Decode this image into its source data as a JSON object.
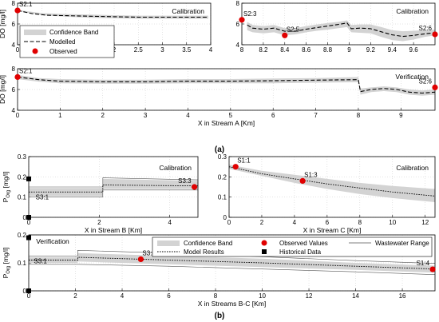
{
  "figure": {
    "label_a": "(a)",
    "label_b": "(b)"
  },
  "chart_data": [
    {
      "id": "a1",
      "type": "line",
      "title": "Calibration",
      "ylabel": "DO [mg/l]",
      "xlabel": "",
      "xlim": [
        0,
        4
      ],
      "ylim": [
        4,
        8
      ],
      "xticks": [
        0,
        0.5,
        1,
        1.5,
        2,
        2.5,
        3,
        3.5,
        4
      ],
      "xticklabels": [
        "0",
        "0.5",
        "1",
        "1.5",
        "2",
        "2.5",
        "3",
        "3.5",
        "4"
      ],
      "yticks": [
        4,
        6,
        8
      ],
      "yticklabels": [
        "4",
        "6",
        "8"
      ],
      "grid": true,
      "legend": {
        "placement": "bottom-left",
        "entries": [
          {
            "label": "Confidence Band",
            "kind": "band"
          },
          {
            "label": "Modelled",
            "kind": "dashed"
          },
          {
            "label": "Observed",
            "kind": "dot"
          }
        ]
      },
      "band": {
        "x": [
          0,
          0.5,
          1,
          1.5,
          2,
          2.5,
          3,
          3.5,
          3.95
        ],
        "lo": [
          7.25,
          6.85,
          6.7,
          6.6,
          6.55,
          6.5,
          6.5,
          6.5,
          6.5
        ],
        "hi": [
          7.35,
          7.05,
          6.95,
          6.9,
          6.85,
          6.8,
          6.8,
          6.8,
          6.8
        ]
      },
      "series": [
        {
          "x": [
            0,
            0.3,
            0.6,
            1,
            1.5,
            2,
            2.5,
            3,
            3.5,
            3.95
          ],
          "y": [
            7.3,
            7.0,
            6.85,
            6.8,
            6.75,
            6.7,
            6.65,
            6.65,
            6.65,
            6.65
          ],
          "style": "dashed"
        }
      ],
      "observed": [
        {
          "x": 0,
          "y": 7.3,
          "label": "S2:1"
        }
      ]
    },
    {
      "id": "a2",
      "type": "line",
      "title": "Calibration",
      "ylabel": "",
      "xlabel": "",
      "xlim": [
        8,
        9.8
      ],
      "ylim": [
        4,
        8
      ],
      "xticks": [
        8,
        8.2,
        8.4,
        8.6,
        8.8,
        9,
        9.2,
        9.4,
        9.6
      ],
      "xticklabels": [
        "8",
        "8.2",
        "8.4",
        "8.6",
        "8.8",
        "9",
        "9.2",
        "9.4",
        "9.6"
      ],
      "yticks": [
        4,
        6,
        8
      ],
      "yticklabels": [
        "4",
        "6",
        "8"
      ],
      "grid": true,
      "band": {
        "x": [
          8.05,
          8.1,
          8.2,
          8.3,
          8.4,
          8.5,
          8.6,
          8.7,
          8.8,
          8.9,
          8.98,
          9.02,
          9.1,
          9.2,
          9.3,
          9.4,
          9.5,
          9.6,
          9.7,
          9.8
        ],
        "lo": [
          5.4,
          5.2,
          5.1,
          5.2,
          4.9,
          5.0,
          5.2,
          5.35,
          5.45,
          5.6,
          5.7,
          5.2,
          5.15,
          5.1,
          4.75,
          4.45,
          4.35,
          4.5,
          4.75,
          4.9
        ],
        "hi": [
          6.2,
          5.9,
          5.8,
          5.9,
          5.6,
          5.6,
          5.8,
          5.95,
          6.1,
          6.2,
          6.35,
          5.9,
          5.95,
          5.95,
          5.7,
          5.4,
          5.3,
          5.35,
          5.4,
          5.45
        ]
      },
      "series": [
        {
          "x": [
            8.05,
            8.1,
            8.2,
            8.3,
            8.4,
            8.5,
            8.6,
            8.7,
            8.8,
            8.9,
            8.98,
            9.02,
            9.1,
            9.2,
            9.3,
            9.4,
            9.5,
            9.6,
            9.7,
            9.8
          ],
          "y": [
            5.9,
            5.6,
            5.5,
            5.6,
            5.3,
            5.3,
            5.5,
            5.65,
            5.8,
            5.95,
            6.1,
            5.55,
            5.6,
            5.55,
            5.25,
            4.95,
            4.8,
            4.9,
            5.05,
            5.15
          ],
          "style": "dashed"
        }
      ],
      "observed": [
        {
          "x": 8.0,
          "y": 6.4,
          "label": "S2:3"
        },
        {
          "x": 8.4,
          "y": 4.9,
          "label": "S2:5"
        },
        {
          "x": 9.8,
          "y": 5.0,
          "label": "S2:6"
        }
      ]
    },
    {
      "id": "a3",
      "type": "line",
      "title": "Verification",
      "ylabel": "DO [mg/l]",
      "xlabel": "X in Stream A [Km]",
      "xlim": [
        0,
        9.8
      ],
      "ylim": [
        4,
        8
      ],
      "xticks": [
        0,
        1,
        2,
        3,
        4,
        5,
        6,
        7,
        8,
        9
      ],
      "xticklabels": [
        "0",
        "1",
        "2",
        "3",
        "4",
        "5",
        "6",
        "7",
        "8",
        "9"
      ],
      "yticks": [
        4,
        6,
        8
      ],
      "yticklabels": [
        "4",
        "6",
        "8"
      ],
      "grid": true,
      "band": {
        "x": [
          0,
          0.5,
          1,
          2,
          3,
          4,
          5,
          6,
          7,
          8.0,
          8.05,
          8.3,
          8.6,
          8.9,
          9.2,
          9.5,
          9.8
        ],
        "lo": [
          7.0,
          6.75,
          6.6,
          6.55,
          6.55,
          6.6,
          6.6,
          6.6,
          6.65,
          6.7,
          5.5,
          5.75,
          5.85,
          5.75,
          5.5,
          5.4,
          5.5
        ],
        "hi": [
          7.4,
          7.1,
          7.0,
          6.95,
          6.95,
          7.0,
          7.0,
          7.05,
          7.1,
          7.2,
          6.1,
          6.2,
          6.3,
          6.2,
          6.0,
          5.9,
          6.0
        ]
      },
      "series": [
        {
          "x": [
            0,
            0.5,
            1,
            2,
            3,
            4,
            5,
            6,
            7,
            8.0,
            8.05,
            8.3,
            8.6,
            8.9,
            9.2,
            9.5,
            9.8
          ],
          "y": [
            7.2,
            6.95,
            6.8,
            6.75,
            6.75,
            6.8,
            6.8,
            6.85,
            6.9,
            6.95,
            5.8,
            6.0,
            6.1,
            6.0,
            5.75,
            5.65,
            5.75
          ],
          "style": "dashed"
        }
      ],
      "observed": [
        {
          "x": 0,
          "y": 7.2,
          "label": "S2:1"
        },
        {
          "x": 9.8,
          "y": 6.2,
          "label": "S2:6"
        }
      ]
    },
    {
      "id": "b1",
      "type": "line",
      "title": "Calibration",
      "ylabel": "P_Org [mg/l]",
      "xlabel": "X in Stream B [Km]",
      "xlim": [
        0,
        4.8
      ],
      "ylim": [
        0,
        0.3
      ],
      "xticks": [
        0,
        2,
        4
      ],
      "xticklabels": [
        "0",
        "2",
        "4"
      ],
      "yticks": [
        0,
        0.1,
        0.2,
        0.3
      ],
      "yticklabels": [
        "0",
        "0.1",
        "0.2",
        "0.3"
      ],
      "grid": true,
      "band": {
        "x": [
          0,
          2.1,
          2.1,
          4.8
        ],
        "lo": [
          0.105,
          0.105,
          0.14,
          0.14
        ],
        "hi": [
          0.145,
          0.145,
          0.19,
          0.18
        ]
      },
      "wastewater": [
        {
          "x": [
            0,
            2.1,
            2.1,
            4.8
          ],
          "y": [
            0.1,
            0.1,
            0.135,
            0.135
          ]
        },
        {
          "x": [
            0,
            2.1,
            2.1,
            4.8
          ],
          "y": [
            0.15,
            0.15,
            0.195,
            0.185
          ]
        }
      ],
      "series": [
        {
          "x": [
            0,
            2.1,
            2.1,
            4.8
          ],
          "y": [
            0.125,
            0.125,
            0.16,
            0.155
          ],
          "style": "dotted"
        }
      ],
      "observed": [
        {
          "x": 4.7,
          "y": 0.15,
          "label": "S3:3"
        }
      ],
      "historical": [
        {
          "x": 0,
          "y": 0.19
        },
        {
          "x": 0,
          "y": 0.0
        }
      ],
      "extra_labels": [
        {
          "x": 0.15,
          "y": 0.1,
          "label": "S3:1"
        }
      ]
    },
    {
      "id": "b2",
      "type": "line",
      "title": "Calibration",
      "ylabel": "",
      "xlabel": "X in Stream C [Km]",
      "xlim": [
        0,
        12.6
      ],
      "ylim": [
        0,
        0.3
      ],
      "xticks": [
        0,
        2,
        4,
        6,
        8,
        10,
        12
      ],
      "xticklabels": [
        "0",
        "2",
        "4",
        "6",
        "8",
        "10",
        "12"
      ],
      "yticks": [
        0,
        0.1,
        0.2,
        0.3
      ],
      "yticklabels": [
        "0",
        "0.1",
        "0.2",
        "0.3"
      ],
      "grid": true,
      "band": {
        "x": [
          0,
          2,
          4,
          6,
          8,
          10,
          12.6
        ],
        "lo": [
          0.24,
          0.205,
          0.17,
          0.14,
          0.115,
          0.095,
          0.075
        ],
        "hi": [
          0.26,
          0.23,
          0.21,
          0.19,
          0.17,
          0.155,
          0.14
        ]
      },
      "series": [
        {
          "x": [
            0,
            2,
            4,
            6,
            8,
            10,
            12.6
          ],
          "y": [
            0.25,
            0.215,
            0.19,
            0.165,
            0.145,
            0.125,
            0.105
          ],
          "style": "dotted"
        }
      ],
      "observed": [
        {
          "x": 0.4,
          "y": 0.25,
          "label": "S1:1"
        },
        {
          "x": 4.5,
          "y": 0.18,
          "label": "S1:3"
        }
      ]
    },
    {
      "id": "b3",
      "type": "line",
      "title": "Verification",
      "ylabel": "P_Org [mg/l]",
      "xlabel": "X in Streams B-C [Km]",
      "xlim": [
        0,
        17.4
      ],
      "ylim": [
        0,
        0.2
      ],
      "xticks": [
        0,
        2,
        4,
        6,
        8,
        10,
        12,
        14,
        16
      ],
      "xticklabels": [
        "0",
        "2",
        "4",
        "6",
        "8",
        "10",
        "12",
        "14",
        "16"
      ],
      "yticks": [
        0,
        0.1,
        0.2
      ],
      "yticklabels": [
        "0",
        "0.1",
        "0.2"
      ],
      "grid": true,
      "legend": {
        "placement": "top",
        "entries": [
          {
            "label": "Confidence Band",
            "kind": "band"
          },
          {
            "label": "Model Results",
            "kind": "dotted"
          },
          {
            "label": "Observed Values",
            "kind": "dot"
          },
          {
            "label": "Historical Data",
            "kind": "square"
          },
          {
            "label": "Wastewater Range",
            "kind": "thin"
          }
        ]
      },
      "band": {
        "x": [
          0,
          2.1,
          2.1,
          6,
          10,
          14,
          17.4
        ],
        "lo": [
          0.1,
          0.1,
          0.105,
          0.095,
          0.085,
          0.075,
          0.065
        ],
        "hi": [
          0.12,
          0.12,
          0.135,
          0.125,
          0.115,
          0.1,
          0.09
        ]
      },
      "wastewater": [
        {
          "x": [
            0,
            2.1,
            2.1,
            6,
            10,
            14,
            17.4
          ],
          "y": [
            0.095,
            0.095,
            0.095,
            0.088,
            0.078,
            0.068,
            0.058
          ]
        },
        {
          "x": [
            0,
            2.1,
            2.1,
            6,
            10,
            14,
            17.4
          ],
          "y": [
            0.125,
            0.125,
            0.145,
            0.135,
            0.122,
            0.108,
            0.098
          ]
        }
      ],
      "series": [
        {
          "x": [
            0,
            2.1,
            2.1,
            6,
            10,
            14,
            17.4
          ],
          "y": [
            0.11,
            0.11,
            0.12,
            0.11,
            0.1,
            0.088,
            0.078
          ],
          "style": "dotted"
        }
      ],
      "observed": [
        {
          "x": 4.8,
          "y": 0.113,
          "label": "S3:3"
        },
        {
          "x": 17.3,
          "y": 0.077,
          "label": "S1:4"
        }
      ],
      "historical": [
        {
          "x": 0,
          "y": 0.19
        },
        {
          "x": 0,
          "y": 0.0
        }
      ],
      "extra_labels": [
        {
          "x": 0.15,
          "y": 0.107,
          "label": "S3:1"
        }
      ]
    }
  ]
}
